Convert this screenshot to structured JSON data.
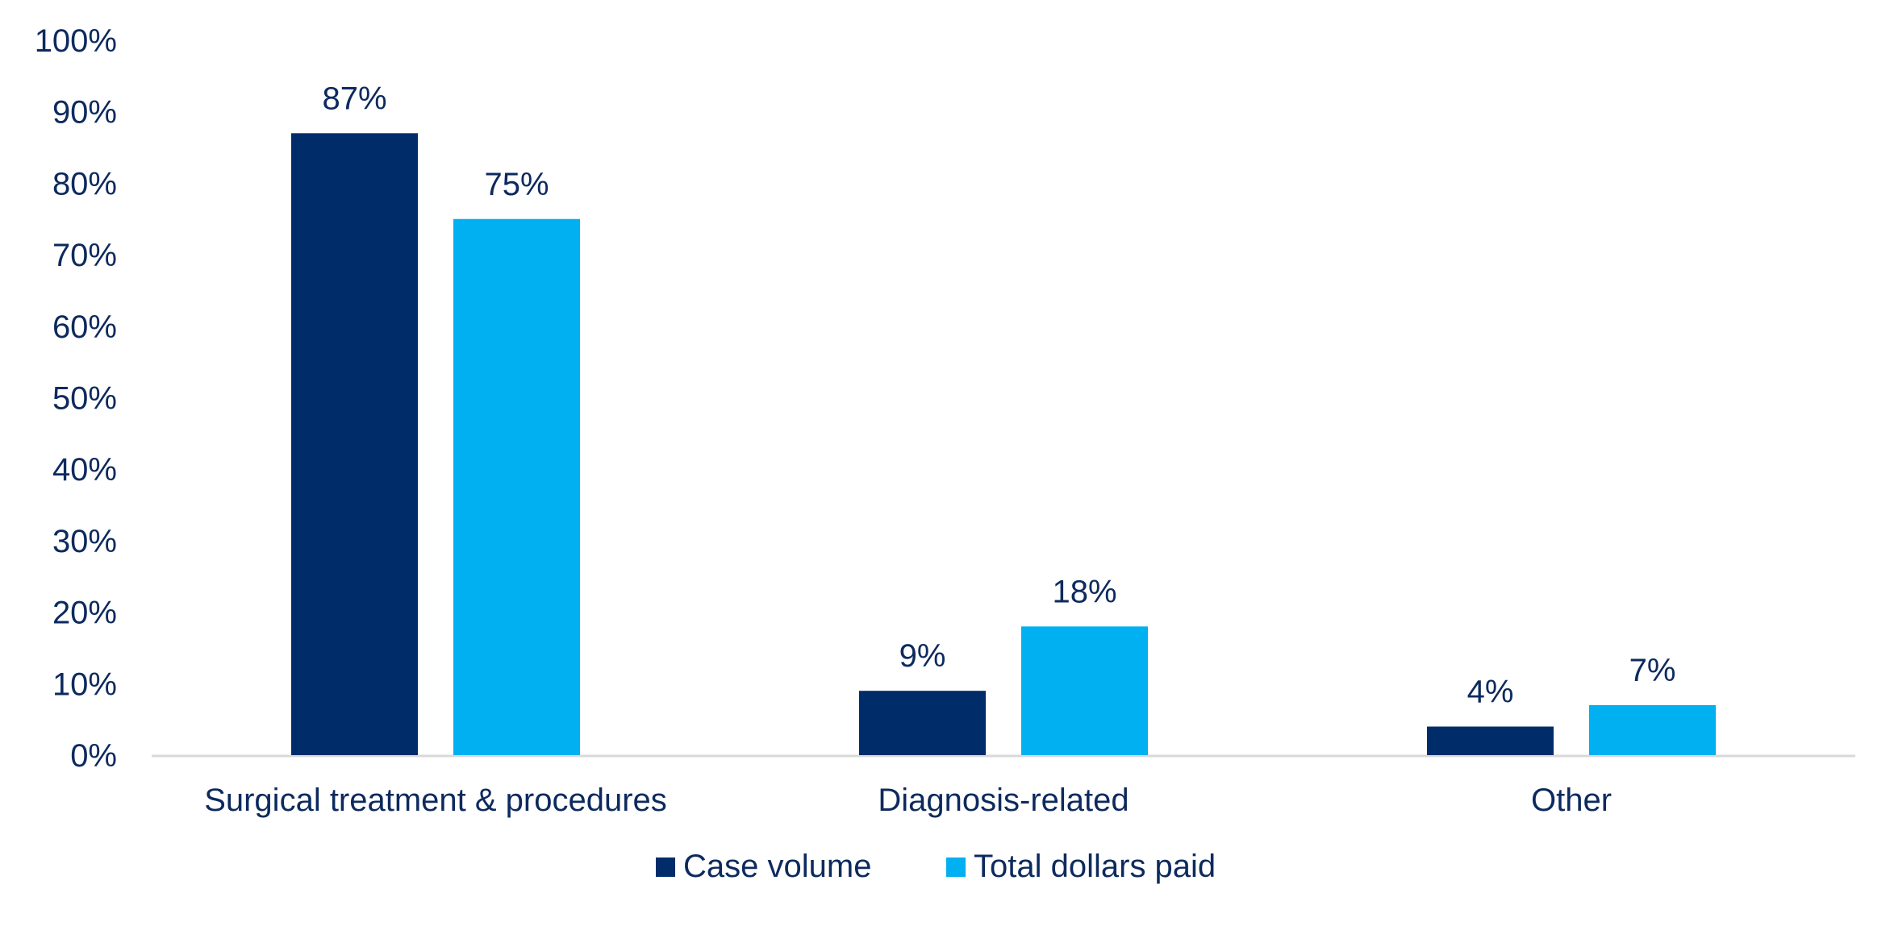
{
  "chart_data": {
    "type": "bar",
    "title": "",
    "xlabel": "",
    "ylabel": "",
    "categories": [
      "Surgical treatment & procedures",
      "Diagnosis-related",
      "Other"
    ],
    "series": [
      {
        "name": "Case volume",
        "values": [
          87,
          9,
          4
        ],
        "labels": [
          "87%",
          "9%",
          "4%"
        ],
        "color": "#002D6A"
      },
      {
        "name": "Total dollars paid",
        "values": [
          75,
          18,
          7
        ],
        "labels": [
          "75%",
          "18%",
          "7%"
        ],
        "color": "#00B0F0"
      }
    ],
    "ylim": [
      0,
      100
    ],
    "yticks": [
      0,
      10,
      20,
      30,
      40,
      50,
      60,
      70,
      80,
      90,
      100
    ],
    "ytick_labels": [
      "0%",
      "10%",
      "20%",
      "30%",
      "40%",
      "50%",
      "60%",
      "70%",
      "80%",
      "90%",
      "100%"
    ],
    "grid": false,
    "legend_position": "bottom-center",
    "text_color": "#0D2A5E",
    "axis_line_color": "#D9D9D9"
  }
}
